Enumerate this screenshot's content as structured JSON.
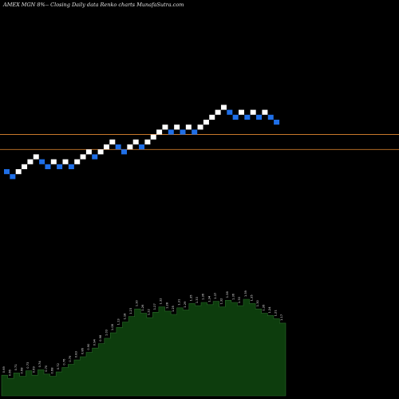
{
  "chart_data": {
    "type": "renko",
    "title": "AMEX  MGN  8%--  Closing Daily data  Renko  charts MunafaSutra.com",
    "colors": {
      "background": "#000000",
      "up_brick": "#ffffff",
      "down_brick": "#1f6fe8",
      "resistance_line": "#c8782a",
      "volume_fill": "#0d3d0d",
      "volume_edge": "#2a6a2a"
    },
    "bricks": [
      {
        "d": "down",
        "level": 0
      },
      {
        "d": "down",
        "level": -1
      },
      {
        "d": "up",
        "level": 0
      },
      {
        "d": "up",
        "level": 1
      },
      {
        "d": "up",
        "level": 2
      },
      {
        "d": "up",
        "level": 3
      },
      {
        "d": "down",
        "level": 2
      },
      {
        "d": "down",
        "level": 1
      },
      {
        "d": "up",
        "level": 2
      },
      {
        "d": "down",
        "level": 1
      },
      {
        "d": "up",
        "level": 2
      },
      {
        "d": "down",
        "level": 1
      },
      {
        "d": "up",
        "level": 2
      },
      {
        "d": "up",
        "level": 3
      },
      {
        "d": "up",
        "level": 4
      },
      {
        "d": "down",
        "level": 3
      },
      {
        "d": "up",
        "level": 4
      },
      {
        "d": "up",
        "level": 5
      },
      {
        "d": "up",
        "level": 6
      },
      {
        "d": "down",
        "level": 5
      },
      {
        "d": "down",
        "level": 4
      },
      {
        "d": "up",
        "level": 5
      },
      {
        "d": "up",
        "level": 6
      },
      {
        "d": "down",
        "level": 5
      },
      {
        "d": "up",
        "level": 6
      },
      {
        "d": "up",
        "level": 7
      },
      {
        "d": "up",
        "level": 8
      },
      {
        "d": "up",
        "level": 9
      },
      {
        "d": "down",
        "level": 8
      },
      {
        "d": "up",
        "level": 9
      },
      {
        "d": "down",
        "level": 8
      },
      {
        "d": "up",
        "level": 9
      },
      {
        "d": "down",
        "level": 8
      },
      {
        "d": "up",
        "level": 9
      },
      {
        "d": "up",
        "level": 10
      },
      {
        "d": "up",
        "level": 11
      },
      {
        "d": "up",
        "level": 12
      },
      {
        "d": "up",
        "level": 13
      },
      {
        "d": "down",
        "level": 12
      },
      {
        "d": "down",
        "level": 11
      },
      {
        "d": "up",
        "level": 12
      },
      {
        "d": "down",
        "level": 11
      },
      {
        "d": "up",
        "level": 12
      },
      {
        "d": "down",
        "level": 11
      },
      {
        "d": "up",
        "level": 12
      },
      {
        "d": "down",
        "level": 11
      },
      {
        "d": "down",
        "level": 10
      }
    ],
    "price_lines": [
      8,
      4
    ],
    "volume_labels": [
      "0.69",
      "0.66",
      "0.71",
      "0.68",
      "0.73",
      "0.69",
      "0.74",
      "0.70",
      "0.68",
      "0.72",
      "0.76",
      "0.79",
      "0.83",
      "0.86",
      "0.90",
      "0.94",
      "0.98",
      "1.03",
      "1.08",
      "1.13",
      "1.18",
      "1.23",
      "1.30",
      "1.26",
      "1.22",
      "1.27",
      "1.32",
      "1.28",
      "1.25",
      "1.31",
      "1.29",
      "1.35",
      "1.33",
      "1.36",
      "1.34",
      "1.37",
      "1.32",
      "1.38",
      "1.36",
      "1.33",
      "1.39",
      "1.35",
      "1.30",
      "1.26",
      "1.24",
      "1.21",
      "1.17"
    ],
    "volume": [
      0.69,
      0.66,
      0.71,
      0.68,
      0.73,
      0.69,
      0.74,
      0.7,
      0.68,
      0.72,
      0.76,
      0.79,
      0.83,
      0.86,
      0.9,
      0.94,
      0.98,
      1.03,
      1.08,
      1.13,
      1.18,
      1.23,
      1.3,
      1.26,
      1.22,
      1.27,
      1.32,
      1.28,
      1.25,
      1.31,
      1.29,
      1.35,
      1.33,
      1.36,
      1.34,
      1.37,
      1.32,
      1.38,
      1.36,
      1.33,
      1.39,
      1.35,
      1.3,
      1.26,
      1.24,
      1.21,
      1.17
    ]
  }
}
